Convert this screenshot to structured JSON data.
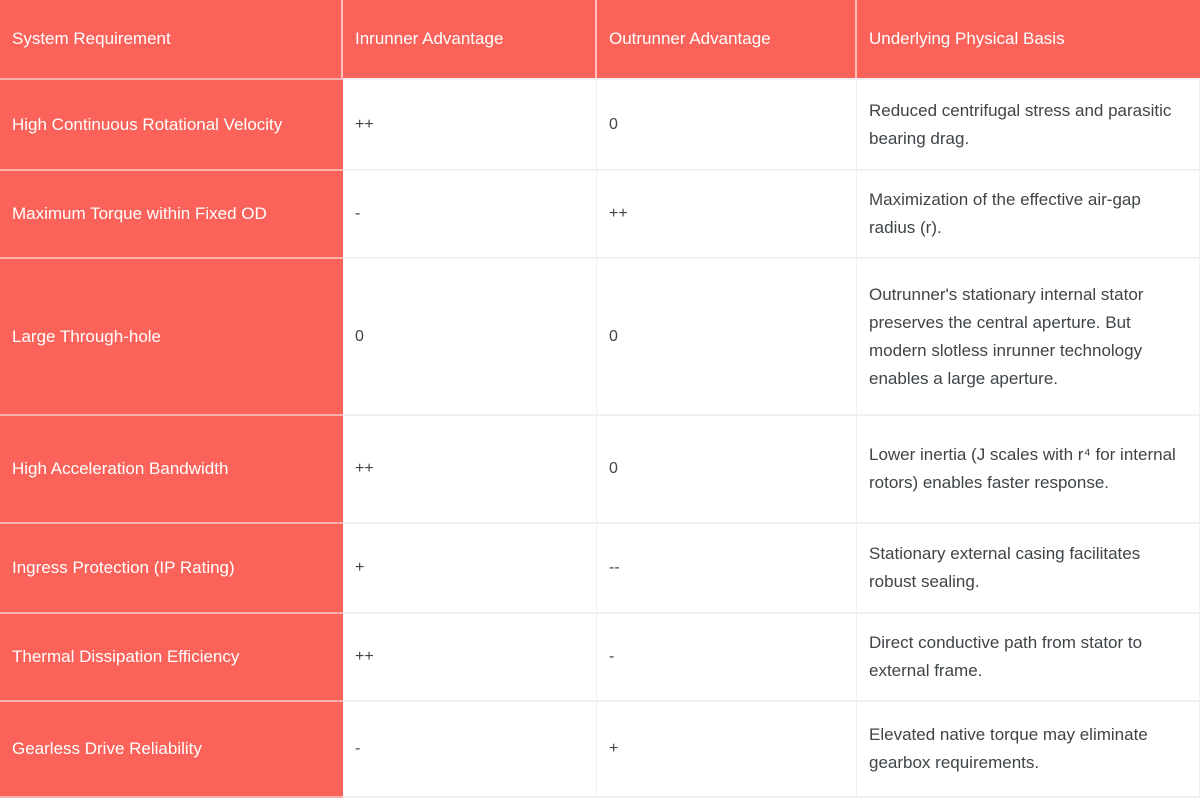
{
  "colors": {
    "accent_red": "#fb6259",
    "header_text": "#ffffff",
    "body_text": "#3f4448",
    "grid_line": "#f1f1f1"
  },
  "table": {
    "columns": [
      "System Requirement",
      "Inrunner Advantage",
      "Outrunner Advantage",
      "Underlying Physical Basis"
    ],
    "rows": [
      {
        "requirement": "High Continuous Rotational Velocity",
        "inrunner": "++",
        "outrunner": "0",
        "basis": "Reduced centrifugal stress and parasitic bearing drag."
      },
      {
        "requirement": "Maximum Torque within Fixed OD",
        "inrunner": "-",
        "outrunner": "++",
        "basis": "Maximization of the effective air-gap radius (r)."
      },
      {
        "requirement": "Large Through-hole",
        "inrunner": "0",
        "outrunner": "0",
        "basis": "Outrunner's stationary internal stator preserves the central aperture. But modern slotless inrunner technology enables a large aperture."
      },
      {
        "requirement": "High Acceleration Bandwidth",
        "inrunner": "++",
        "outrunner": "0",
        "basis": "Lower inertia (J scales with r⁴ for internal rotors) enables faster response."
      },
      {
        "requirement": "Ingress Protection (IP Rating)",
        "inrunner": "+",
        "outrunner": "--",
        "basis": "Stationary external casing facilitates robust sealing."
      },
      {
        "requirement": "Thermal Dissipation Efficiency",
        "inrunner": "++",
        "outrunner": "-",
        "basis": "Direct conductive path from stator to external frame."
      },
      {
        "requirement": "Gearless Drive Reliability",
        "inrunner": "-",
        "outrunner": "+",
        "basis": "Elevated native torque may eliminate gearbox requirements."
      }
    ]
  }
}
